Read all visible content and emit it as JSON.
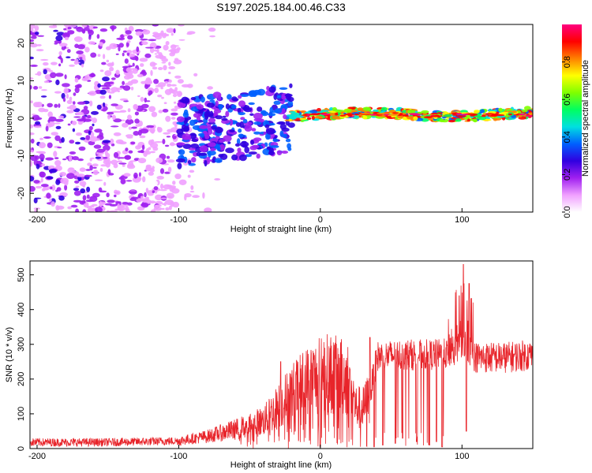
{
  "title": "S197.2025.184.00.46.C33",
  "chart_data": [
    {
      "type": "heatmap",
      "xlabel": "Height of straight line (km)",
      "ylabel": "Frequency (Hz)",
      "xlim": [
        -205,
        150
      ],
      "ylim": [
        -25,
        25
      ],
      "x_ticks": [
        -200,
        -100,
        0,
        100
      ],
      "y_ticks": [
        -20,
        -10,
        0,
        10,
        20
      ],
      "colorbar": {
        "label": "Normalized spectral amplitude",
        "range": [
          0,
          1
        ],
        "ticks": [
          "0.0",
          "0.2",
          "0.4",
          "0.6",
          "0.8"
        ],
        "colors": [
          "#ffffff",
          "#f0a0ff",
          "#a020f0",
          "#3000e0",
          "#0060ff",
          "#00e0e0",
          "#00ff60",
          "#80ff00",
          "#ffff00",
          "#ff8000",
          "#ff0000",
          "#ff0080"
        ]
      },
      "description_regions": [
        {
          "x_range": [
            -205,
            -100
          ],
          "freq_range": [
            -25,
            25
          ],
          "amplitude": "0.1-0.3 scattered"
        },
        {
          "x_range": [
            -100,
            -20
          ],
          "freq_range": [
            -15,
            10
          ],
          "amplitude": "0.2-0.4"
        },
        {
          "x_range": [
            -20,
            150
          ],
          "freq_range": [
            -1,
            3
          ],
          "amplitude": "0.4-1.0 concentrated line"
        }
      ],
      "series_color": "#7a00ff"
    },
    {
      "type": "line",
      "xlabel": "Height of straight line (km)",
      "ylabel": "SNR (10 * v/v)",
      "xlim": [
        -205,
        150
      ],
      "ylim": [
        0,
        540
      ],
      "x_ticks": [
        -200,
        -100,
        0,
        100
      ],
      "y_ticks": [
        0,
        100,
        200,
        300,
        400,
        500
      ],
      "color": "#e8242a",
      "envelope": {
        "x": [
          -205,
          -150,
          -100,
          -80,
          -60,
          -40,
          -30,
          -20,
          -10,
          -5,
          0,
          5,
          10,
          20,
          25,
          30,
          35,
          40,
          60,
          80,
          95,
          100,
          103,
          106,
          110,
          130,
          150
        ],
        "y": [
          18,
          18,
          22,
          35,
          55,
          80,
          120,
          160,
          190,
          200,
          210,
          215,
          212,
          200,
          120,
          115,
          150,
          265,
          270,
          270,
          275,
          300,
          300,
          280,
          262,
          262,
          270
        ]
      },
      "spikes": [
        {
          "x": -28,
          "y": 250
        },
        {
          "x": 0,
          "y": 355
        },
        {
          "x": 35,
          "y": 320
        },
        {
          "x": 98,
          "y": 440
        },
        {
          "x": 101,
          "y": 530
        },
        {
          "x": 105,
          "y": 475
        }
      ],
      "dips": [
        {
          "x": 0,
          "y": 5
        },
        {
          "x": 38,
          "y": 5
        },
        {
          "x": 44,
          "y": 10
        },
        {
          "x": 53,
          "y": 15
        },
        {
          "x": 58,
          "y": 30
        },
        {
          "x": 68,
          "y": 20
        },
        {
          "x": 77,
          "y": 10
        },
        {
          "x": 82,
          "y": 20
        },
        {
          "x": 86,
          "y": 5
        },
        {
          "x": 103,
          "y": 50
        }
      ]
    }
  ]
}
